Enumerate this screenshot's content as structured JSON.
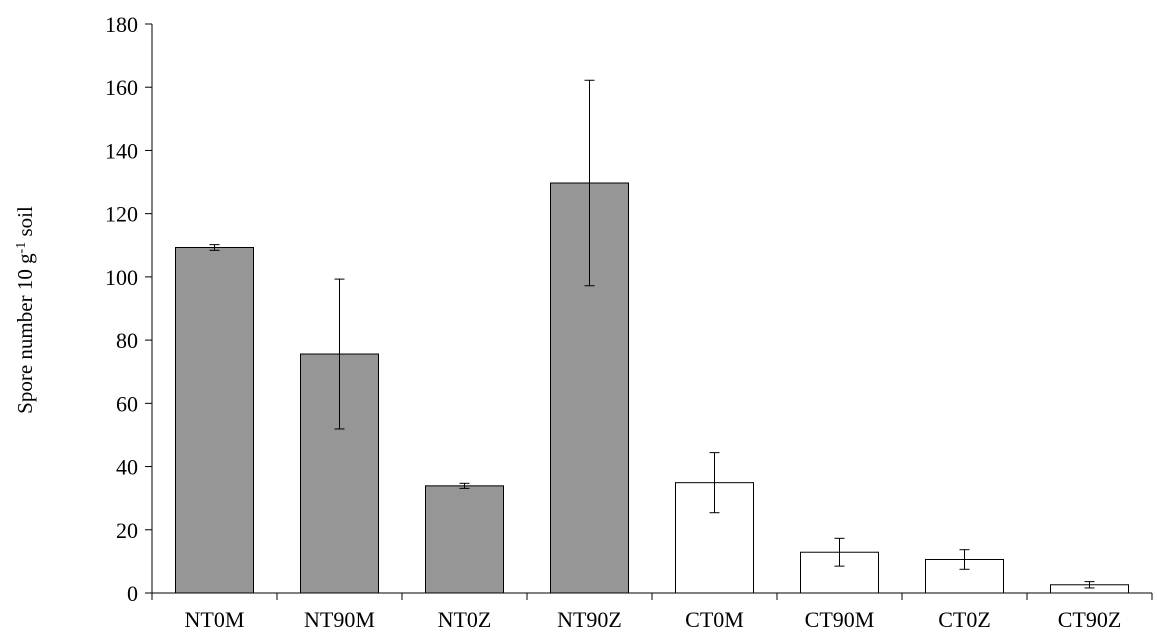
{
  "chart_data": {
    "type": "bar",
    "title": "",
    "xlabel": "",
    "ylabel": {
      "main": "Spore number 10 g",
      "superscript": "-1",
      "suffix": " soil"
    },
    "ylim": [
      0,
      180
    ],
    "yticks": [
      0,
      20,
      40,
      60,
      80,
      100,
      120,
      140,
      160,
      180
    ],
    "categories": [
      "NT0M",
      "NT90M",
      "NT0Z",
      "NT90Z",
      "CT0M",
      "CT90M",
      "CT0Z",
      "CT90Z"
    ],
    "values": [
      109.3,
      75.6,
      33.9,
      129.7,
      34.9,
      12.9,
      10.6,
      2.6
    ],
    "errors": [
      0.9,
      23.7,
      0.8,
      32.5,
      9.5,
      4.4,
      3.1,
      1.0
    ],
    "bar_colors": [
      "#969696",
      "#969696",
      "#969696",
      "#969696",
      "#ffffff",
      "#ffffff",
      "#ffffff",
      "#ffffff"
    ],
    "grid": false,
    "legend": "none"
  }
}
